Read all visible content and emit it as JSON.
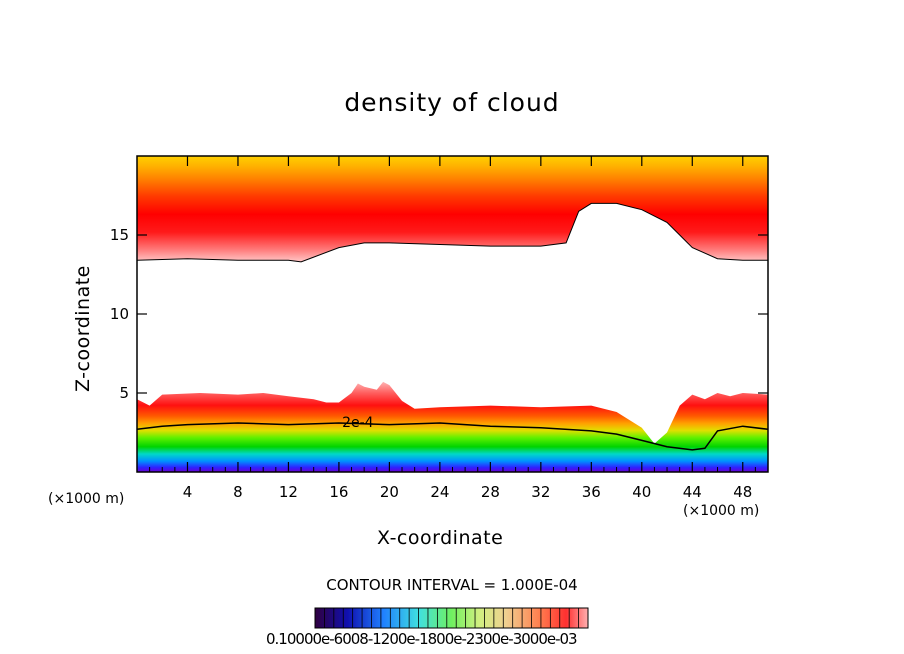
{
  "chart_data": {
    "type": "heatmap",
    "title": "density of cloud",
    "xlabel": "X-coordinate",
    "ylabel": "Z-coordinate",
    "x_unit_label": "(×1000 m)",
    "x_unit_label_right": "(×1000 m)",
    "xlim": [
      0,
      50
    ],
    "ylim": [
      0,
      20
    ],
    "x_ticks": [
      "4",
      "8",
      "12",
      "16",
      "20",
      "24",
      "28",
      "32",
      "36",
      "40",
      "44",
      "48"
    ],
    "y_ticks": [
      "5",
      "10",
      "15"
    ],
    "contour_interval_text": "CONTOUR INTERVAL = 1.000E-04",
    "contour_labels": [
      "2e-4"
    ],
    "colorbar_labels_text": "0.10000e-6008-1200e-1800e-2300e-3000e-03",
    "colorbar_levels": 29,
    "upper_layer_bottom": {
      "x": [
        0,
        4,
        8,
        12,
        13,
        14,
        16,
        18,
        20,
        24,
        28,
        32,
        34,
        35,
        36,
        38,
        40,
        42,
        43,
        44,
        46,
        48,
        50
      ],
      "z": [
        13.4,
        13.5,
        13.4,
        13.4,
        13.3,
        13.6,
        14.2,
        14.5,
        14.5,
        14.4,
        14.3,
        14.3,
        14.5,
        16.5,
        17.0,
        17.0,
        16.6,
        15.8,
        15.0,
        14.2,
        13.5,
        13.4,
        13.4
      ]
    },
    "lower_layer_top": {
      "x": [
        0,
        1,
        2,
        5,
        8,
        10,
        12,
        14,
        15,
        16,
        17,
        17.5,
        18,
        19,
        19.5,
        20,
        21,
        22,
        24,
        28,
        32,
        36,
        38,
        40,
        41,
        42,
        43,
        44,
        45,
        46,
        47,
        48,
        50
      ],
      "z": [
        4.6,
        4.2,
        4.9,
        5.0,
        4.9,
        5.0,
        4.8,
        4.6,
        4.4,
        4.4,
        5.0,
        5.6,
        5.4,
        5.2,
        5.7,
        5.5,
        4.5,
        4.0,
        4.1,
        4.2,
        4.1,
        4.2,
        3.8,
        2.8,
        1.8,
        2.5,
        4.2,
        4.9,
        4.6,
        5.0,
        4.8,
        5.0,
        4.9
      ]
    },
    "contour_2e4": {
      "x": [
        0,
        2,
        4,
        8,
        12,
        16,
        20,
        24,
        28,
        32,
        36,
        38,
        40,
        42,
        44,
        45,
        46,
        48,
        50
      ],
      "z": [
        2.7,
        2.9,
        3.0,
        3.1,
        3.0,
        3.1,
        3.0,
        3.1,
        2.9,
        2.8,
        2.6,
        2.4,
        2.0,
        1.6,
        1.4,
        1.5,
        2.6,
        2.9,
        2.7
      ]
    }
  }
}
